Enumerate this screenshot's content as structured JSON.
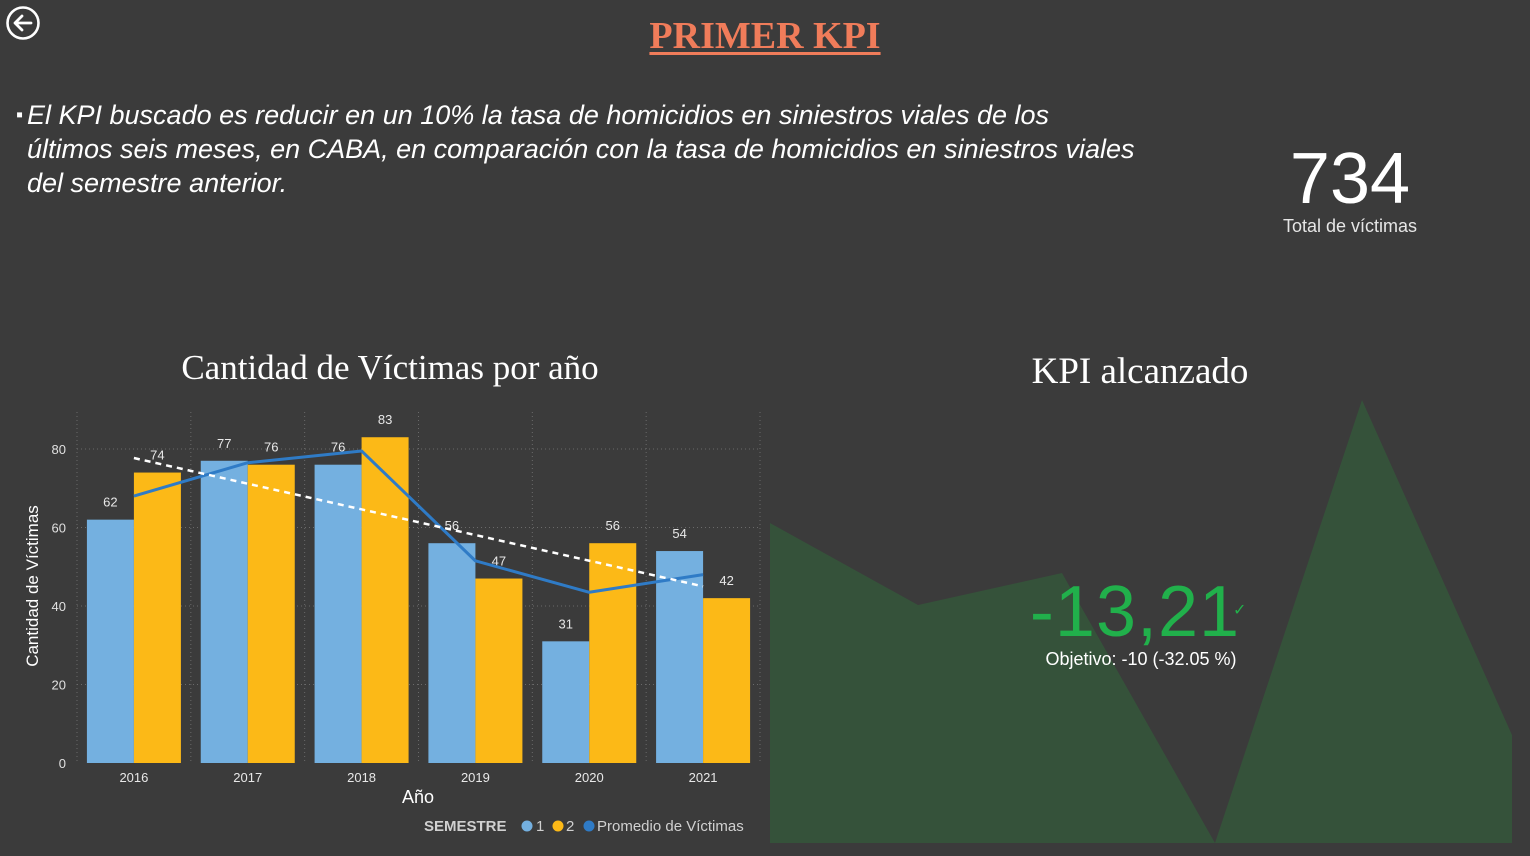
{
  "page": {
    "title": "PRIMER KPI",
    "bullet": "▪",
    "description": "El KPI buscado es reducir en un 10% la tasa de homicidios en siniestros viales de los últimos seis meses, en CABA, en comparación con la tasa de homicidios en siniestros viales del semestre anterior."
  },
  "nav": {
    "back_icon": "arrow-left-circle-icon"
  },
  "card": {
    "value": "734",
    "label": "Total de víctimas"
  },
  "kpi": {
    "title": "KPI alcanzado",
    "value": "-13,21",
    "status_icon": "check-icon",
    "goal_text": "Objetivo: -10 (-32.05 %)",
    "color": "#21b04b",
    "trend_color": "#35523a"
  },
  "chart_title": "Cantidad de Víctimas por año",
  "colors": {
    "background": "#3b3b3b",
    "semester_1": "#74b0e0",
    "semester_2": "#fcb917",
    "average": "#2f7bc6",
    "trend": "#ffffff",
    "title_accent": "#f07c5a"
  },
  "chart_data": {
    "type": "bar",
    "title": "Cantidad de Víctimas por año",
    "xlabel": "Año",
    "ylabel": "Cantidad de Víctimas",
    "categories": [
      "2016",
      "2017",
      "2018",
      "2019",
      "2020",
      "2021"
    ],
    "ylim": [
      0,
      85
    ],
    "yticks": [
      0,
      20,
      40,
      60,
      80
    ],
    "grid": true,
    "legend_title": "SEMESTRE",
    "legend_position": "bottom-right",
    "series": [
      {
        "name": "1",
        "type": "bar",
        "values": [
          62,
          77,
          76,
          56,
          31,
          54
        ]
      },
      {
        "name": "2",
        "type": "bar",
        "values": [
          74,
          76,
          83,
          47,
          56,
          42
        ]
      },
      {
        "name": "Promedio de Víctimas",
        "type": "line",
        "values": [
          68,
          76.5,
          79.5,
          51.5,
          43.5,
          48
        ]
      }
    ],
    "trendline": {
      "type": "dashed",
      "start": 77.7,
      "end": 45
    }
  }
}
